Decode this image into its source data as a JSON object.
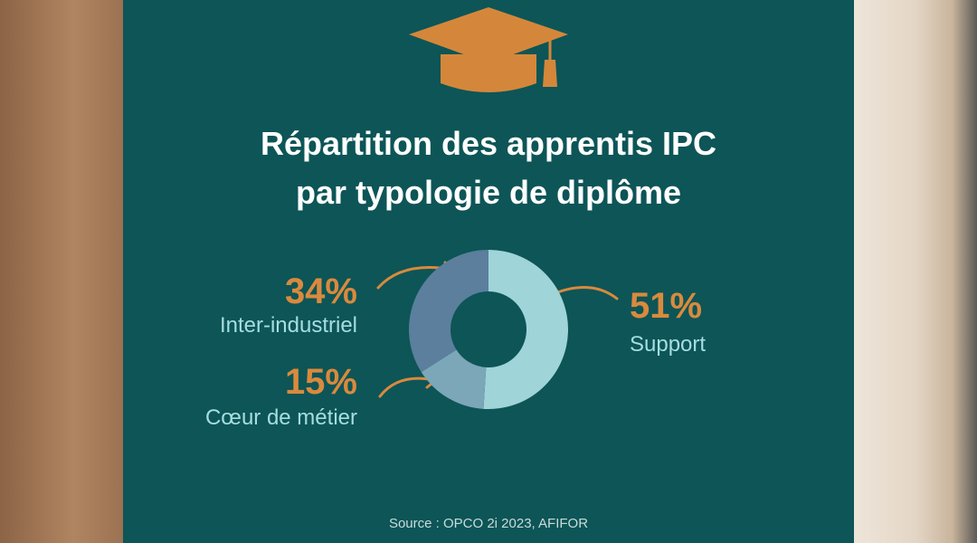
{
  "chart_data": {
    "type": "donut",
    "title": [
      "Répartition des apprentis IPC",
      "par typologie de diplôme"
    ],
    "categories": [
      "Support",
      "Cœur de métier",
      "Inter-industriel"
    ],
    "values": [
      51,
      15,
      34
    ],
    "value_labels": [
      "51%",
      "15%",
      "34%"
    ],
    "colors": [
      "#9fd4d9",
      "#7ba7b8",
      "#5b7f9c"
    ],
    "source": "Source : OPCO 2i 2023, AFIFOR"
  }
}
